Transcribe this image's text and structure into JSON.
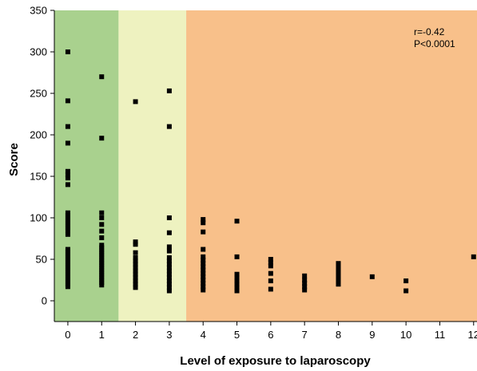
{
  "chart_data": {
    "type": "scatter",
    "xlabel": "Level of exposure to laparoscopy",
    "ylabel": "Score",
    "xlim": [
      -0.4,
      12.1
    ],
    "ylim": [
      -25,
      350
    ],
    "xticks": [
      0,
      1,
      2,
      3,
      4,
      5,
      6,
      7,
      8,
      9,
      10,
      11,
      12
    ],
    "yticks": [
      0,
      50,
      100,
      150,
      200,
      250,
      300,
      350
    ],
    "grid": false,
    "background_bands": [
      {
        "from": -0.4,
        "to": 1.5,
        "color": "#a9d18e"
      },
      {
        "from": 1.5,
        "to": 3.5,
        "color": "#eef2c0"
      },
      {
        "from": 3.5,
        "to": 12.1,
        "color": "#f8c08a"
      }
    ],
    "annotations": [
      "r=-0.42",
      "P<0.0001"
    ],
    "marker_color": "#000000",
    "points": [
      {
        "x": 0,
        "y": 300
      },
      {
        "x": 0,
        "y": 241
      },
      {
        "x": 0,
        "y": 210
      },
      {
        "x": 0,
        "y": 190
      },
      {
        "x": 0,
        "y": 156
      },
      {
        "x": 0,
        "y": 152
      },
      {
        "x": 0,
        "y": 148
      },
      {
        "x": 0,
        "y": 140
      },
      {
        "x": 0,
        "y": 106
      },
      {
        "x": 0,
        "y": 103
      },
      {
        "x": 0,
        "y": 100
      },
      {
        "x": 0,
        "y": 97
      },
      {
        "x": 0,
        "y": 94
      },
      {
        "x": 0,
        "y": 91
      },
      {
        "x": 0,
        "y": 88
      },
      {
        "x": 0,
        "y": 85
      },
      {
        "x": 0,
        "y": 80
      },
      {
        "x": 0,
        "y": 62
      },
      {
        "x": 0,
        "y": 59
      },
      {
        "x": 0,
        "y": 56
      },
      {
        "x": 0,
        "y": 53
      },
      {
        "x": 0,
        "y": 50
      },
      {
        "x": 0,
        "y": 47
      },
      {
        "x": 0,
        "y": 44
      },
      {
        "x": 0,
        "y": 41
      },
      {
        "x": 0,
        "y": 38
      },
      {
        "x": 0,
        "y": 35
      },
      {
        "x": 0,
        "y": 32
      },
      {
        "x": 0,
        "y": 29
      },
      {
        "x": 0,
        "y": 26
      },
      {
        "x": 0,
        "y": 23
      },
      {
        "x": 0,
        "y": 20
      },
      {
        "x": 0,
        "y": 17
      },
      {
        "x": 1,
        "y": 270
      },
      {
        "x": 1,
        "y": 196
      },
      {
        "x": 1,
        "y": 106
      },
      {
        "x": 1,
        "y": 100
      },
      {
        "x": 1,
        "y": 92
      },
      {
        "x": 1,
        "y": 84
      },
      {
        "x": 1,
        "y": 76
      },
      {
        "x": 1,
        "y": 67
      },
      {
        "x": 1,
        "y": 64
      },
      {
        "x": 1,
        "y": 61
      },
      {
        "x": 1,
        "y": 58
      },
      {
        "x": 1,
        "y": 55
      },
      {
        "x": 1,
        "y": 52
      },
      {
        "x": 1,
        "y": 49
      },
      {
        "x": 1,
        "y": 46
      },
      {
        "x": 1,
        "y": 43
      },
      {
        "x": 1,
        "y": 40
      },
      {
        "x": 1,
        "y": 37
      },
      {
        "x": 1,
        "y": 34
      },
      {
        "x": 1,
        "y": 31
      },
      {
        "x": 1,
        "y": 28
      },
      {
        "x": 1,
        "y": 25
      },
      {
        "x": 1,
        "y": 22
      },
      {
        "x": 1,
        "y": 19
      },
      {
        "x": 2,
        "y": 240
      },
      {
        "x": 2,
        "y": 71
      },
      {
        "x": 2,
        "y": 68
      },
      {
        "x": 2,
        "y": 58
      },
      {
        "x": 2,
        "y": 52
      },
      {
        "x": 2,
        "y": 48
      },
      {
        "x": 2,
        "y": 44
      },
      {
        "x": 2,
        "y": 40
      },
      {
        "x": 2,
        "y": 36
      },
      {
        "x": 2,
        "y": 32
      },
      {
        "x": 2,
        "y": 28
      },
      {
        "x": 2,
        "y": 24
      },
      {
        "x": 2,
        "y": 20
      },
      {
        "x": 2,
        "y": 16
      },
      {
        "x": 3,
        "y": 253
      },
      {
        "x": 3,
        "y": 210
      },
      {
        "x": 3,
        "y": 100
      },
      {
        "x": 3,
        "y": 82
      },
      {
        "x": 3,
        "y": 65
      },
      {
        "x": 3,
        "y": 60
      },
      {
        "x": 3,
        "y": 52
      },
      {
        "x": 3,
        "y": 48
      },
      {
        "x": 3,
        "y": 44
      },
      {
        "x": 3,
        "y": 40
      },
      {
        "x": 3,
        "y": 36
      },
      {
        "x": 3,
        "y": 32
      },
      {
        "x": 3,
        "y": 28
      },
      {
        "x": 3,
        "y": 24
      },
      {
        "x": 3,
        "y": 20
      },
      {
        "x": 3,
        "y": 16
      },
      {
        "x": 3,
        "y": 12
      },
      {
        "x": 4,
        "y": 98
      },
      {
        "x": 4,
        "y": 94
      },
      {
        "x": 4,
        "y": 83
      },
      {
        "x": 4,
        "y": 62
      },
      {
        "x": 4,
        "y": 53
      },
      {
        "x": 4,
        "y": 49
      },
      {
        "x": 4,
        "y": 45
      },
      {
        "x": 4,
        "y": 41
      },
      {
        "x": 4,
        "y": 37
      },
      {
        "x": 4,
        "y": 33
      },
      {
        "x": 4,
        "y": 29
      },
      {
        "x": 4,
        "y": 25
      },
      {
        "x": 4,
        "y": 21
      },
      {
        "x": 4,
        "y": 17
      },
      {
        "x": 4,
        "y": 13
      },
      {
        "x": 5,
        "y": 96
      },
      {
        "x": 5,
        "y": 53
      },
      {
        "x": 5,
        "y": 32
      },
      {
        "x": 5,
        "y": 28
      },
      {
        "x": 5,
        "y": 24
      },
      {
        "x": 5,
        "y": 20
      },
      {
        "x": 5,
        "y": 16
      },
      {
        "x": 5,
        "y": 12
      },
      {
        "x": 6,
        "y": 50
      },
      {
        "x": 6,
        "y": 46
      },
      {
        "x": 6,
        "y": 42
      },
      {
        "x": 6,
        "y": 33
      },
      {
        "x": 6,
        "y": 24
      },
      {
        "x": 6,
        "y": 14
      },
      {
        "x": 7,
        "y": 30
      },
      {
        "x": 7,
        "y": 25
      },
      {
        "x": 7,
        "y": 21
      },
      {
        "x": 7,
        "y": 17
      },
      {
        "x": 7,
        "y": 13
      },
      {
        "x": 8,
        "y": 45
      },
      {
        "x": 8,
        "y": 40
      },
      {
        "x": 8,
        "y": 35
      },
      {
        "x": 8,
        "y": 30
      },
      {
        "x": 8,
        "y": 25
      },
      {
        "x": 8,
        "y": 20
      },
      {
        "x": 9,
        "y": 29
      },
      {
        "x": 10,
        "y": 24
      },
      {
        "x": 10,
        "y": 12
      },
      {
        "x": 12,
        "y": 53
      }
    ]
  }
}
